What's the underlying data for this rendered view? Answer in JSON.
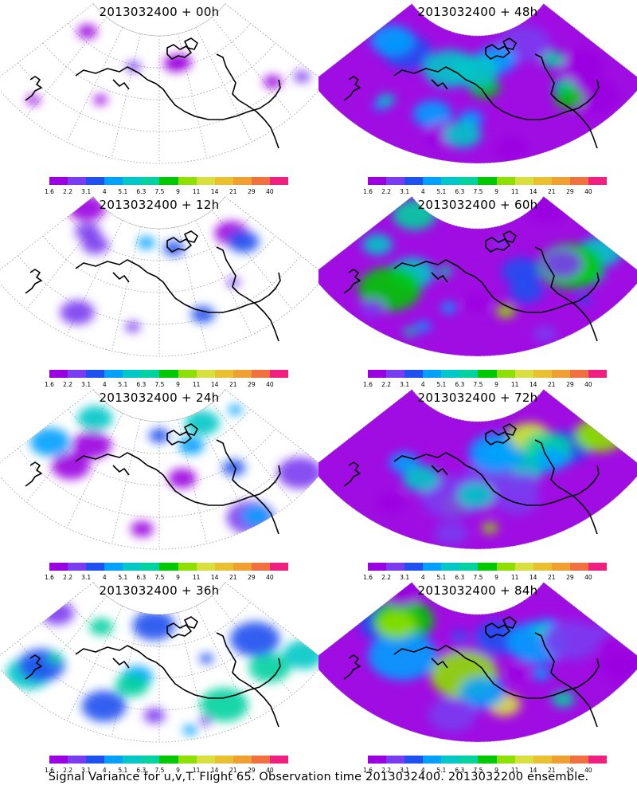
{
  "caption": "Signal Variance for u,v,T. Flight 65. Observation time 2013032400. 2013032200 ensemble.",
  "legend": {
    "ticks": [
      "1.6",
      "2.2",
      "3.1",
      "4",
      "5.1",
      "6.3",
      "7.5",
      "9",
      "11",
      "14",
      "21",
      "29",
      "40"
    ],
    "colors": [
      "#9a00e0",
      "#7a3cf0",
      "#2050f0",
      "#00a0ff",
      "#00c8c8",
      "#00d2a0",
      "#00c800",
      "#8ee000",
      "#d8e040",
      "#e8c030",
      "#f0a030",
      "#f07040",
      "#f02080"
    ]
  },
  "panels": [
    {
      "title": "2013032400 + 00h",
      "level": 0.1
    },
    {
      "title": "2013032400 + 48h",
      "level": 0.8
    },
    {
      "title": "2013032400 + 12h",
      "level": 0.28
    },
    {
      "title": "2013032400 + 60h",
      "level": 0.85
    },
    {
      "title": "2013032400 + 24h",
      "level": 0.45
    },
    {
      "title": "2013032400 + 72h",
      "level": 0.92
    },
    {
      "title": "2013032400 + 36h",
      "level": 0.6
    },
    {
      "title": "2013032400 + 84h",
      "level": 1.0
    }
  ]
}
